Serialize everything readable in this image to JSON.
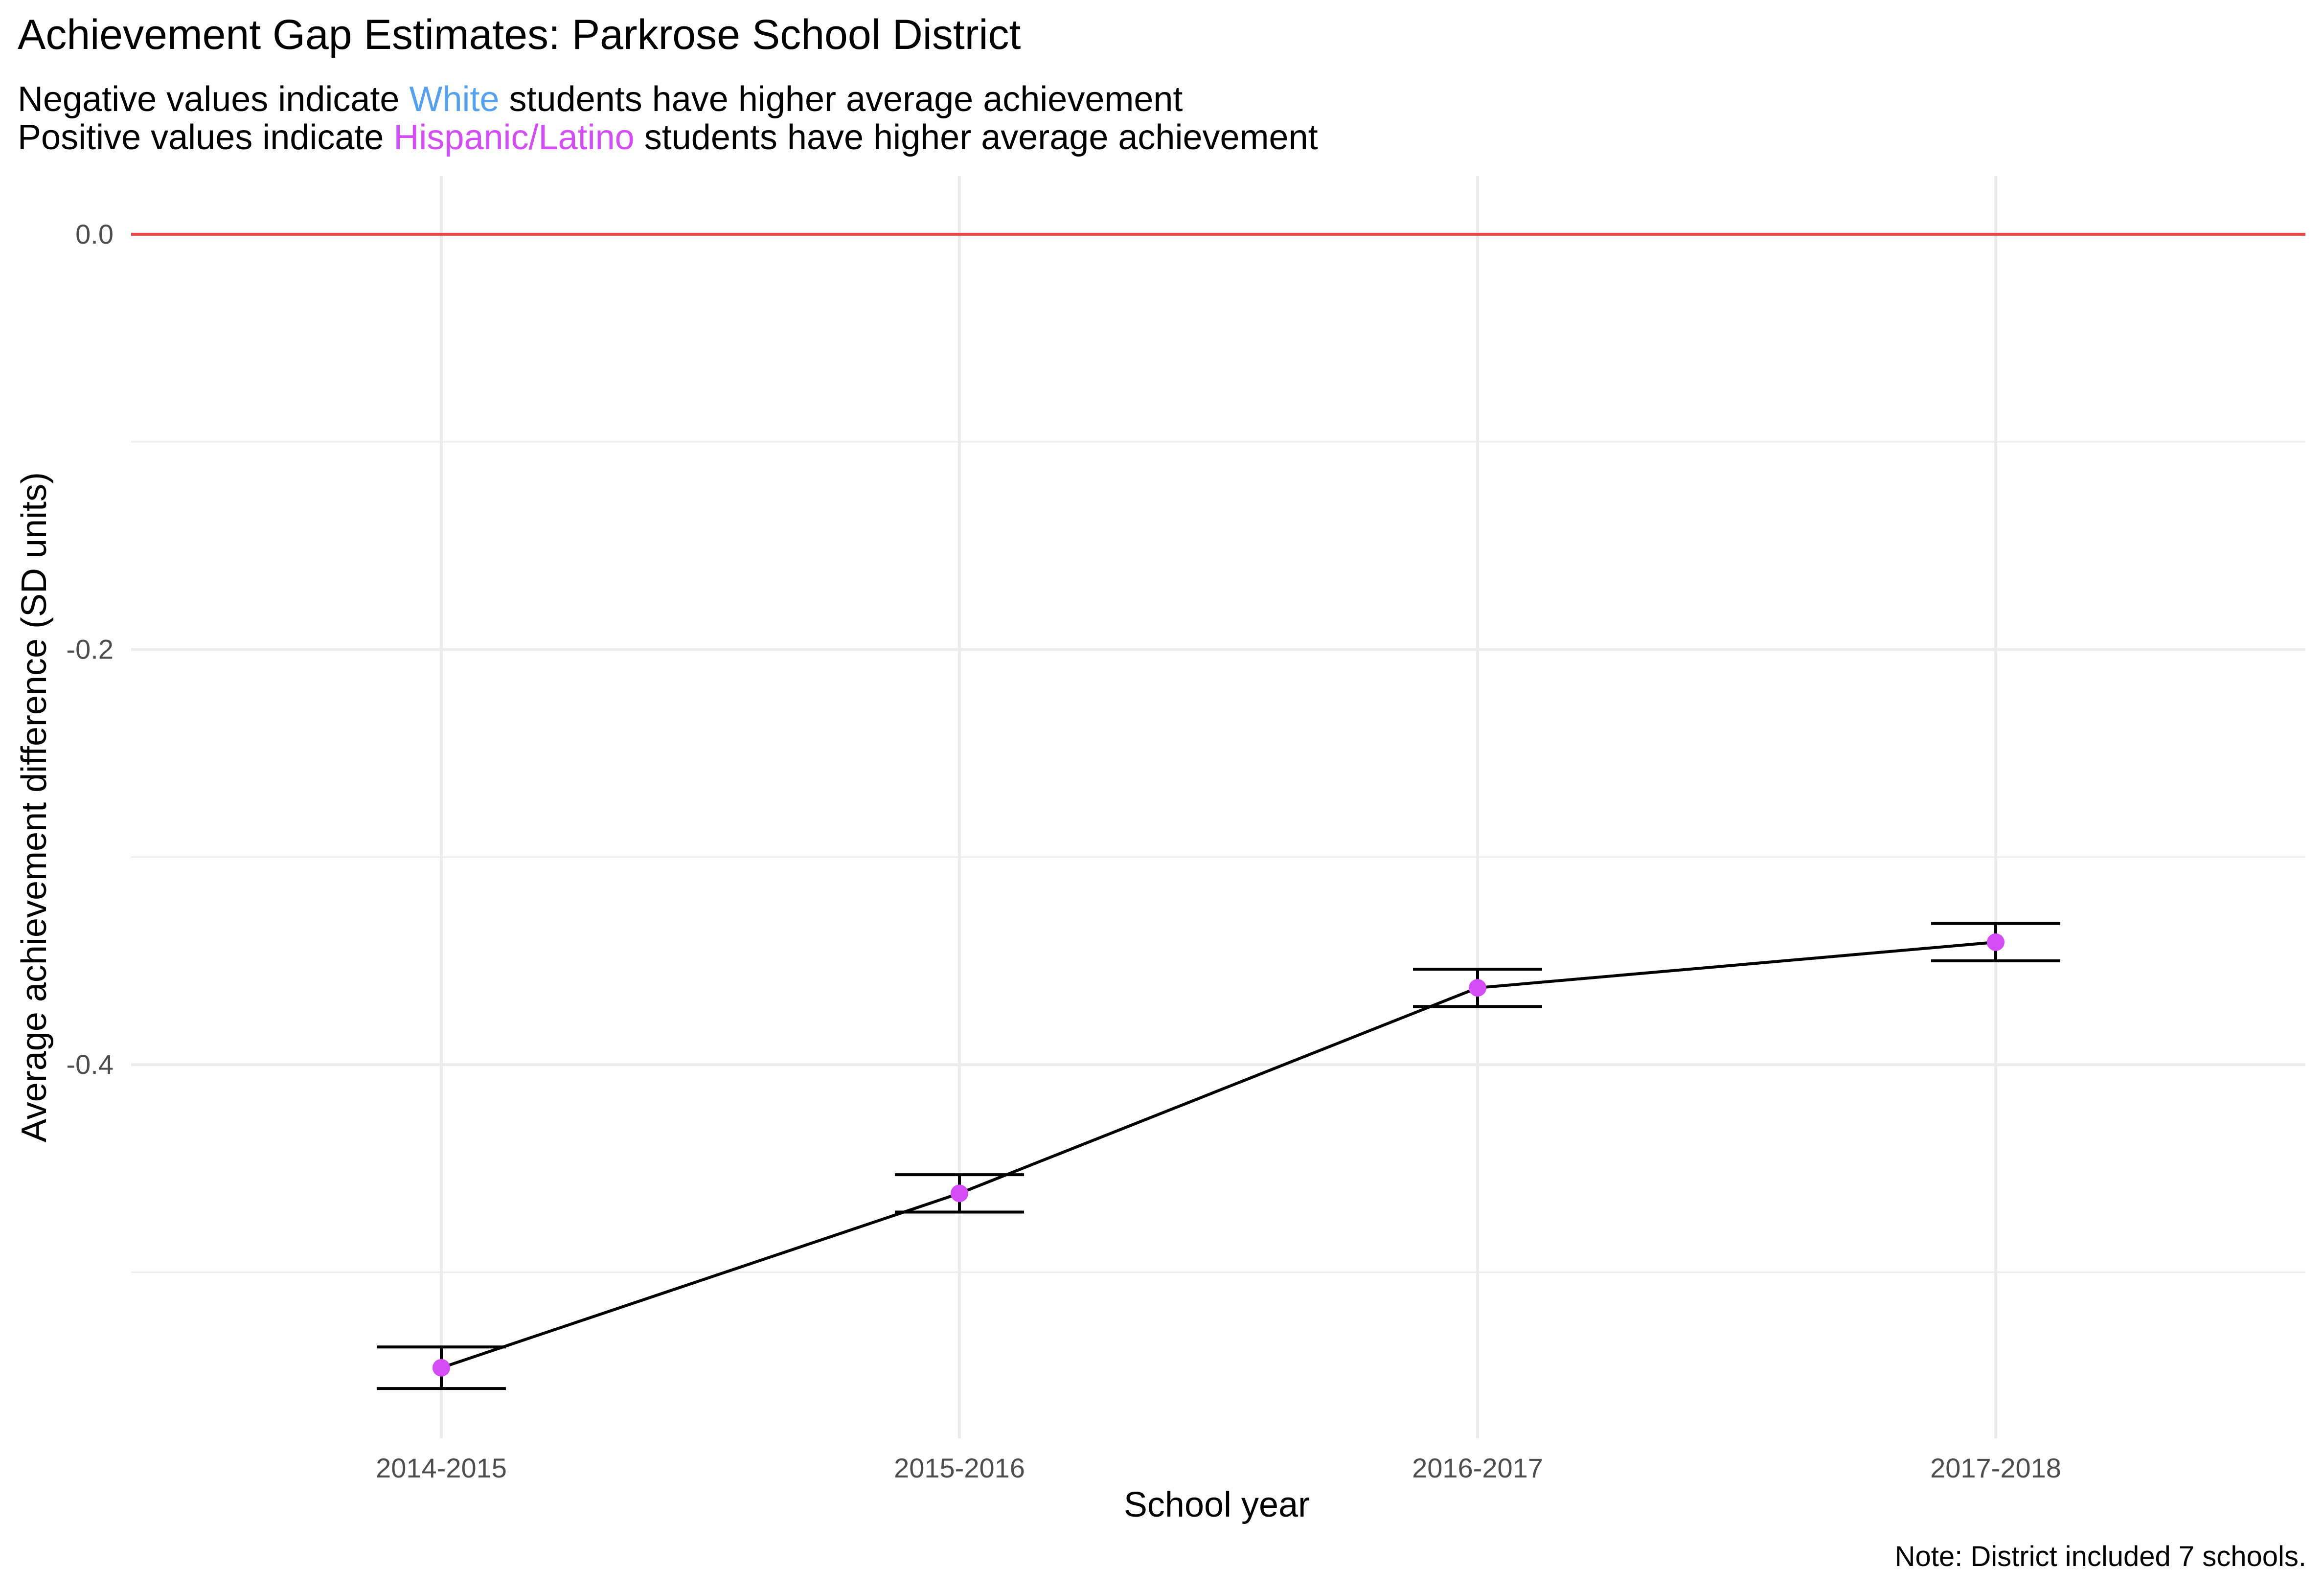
{
  "chart_data": {
    "type": "line",
    "title": "Achievement Gap Estimates: Parkrose School District",
    "subtitle": {
      "line1": {
        "before": "Negative values indicate ",
        "group": "White",
        "after": " students have higher average achievement"
      },
      "line2": {
        "before": "Positive values indicate ",
        "group": "Hispanic/Latino",
        "after": " students have higher average achievement"
      }
    },
    "xlabel": "School year",
    "ylabel": "Average achievement difference (SD units)",
    "caption": "Note: District included 7 schools.",
    "categories": [
      "2014-2015",
      "2015-2016",
      "2016-2017",
      "2017-2018"
    ],
    "series": [
      {
        "values": [
          -0.546,
          -0.462,
          -0.363,
          -0.341
        ],
        "error_low": [
          -0.556,
          -0.471,
          -0.372,
          -0.35
        ],
        "error_high": [
          -0.536,
          -0.453,
          -0.354,
          -0.332
        ]
      }
    ],
    "ylim": [
      -0.58,
      0.028
    ],
    "yticks": [
      0.0,
      -0.2,
      -0.4
    ],
    "ytick_labels": [
      "0.0",
      "-0.2",
      "-0.4"
    ],
    "minor_yticks": [
      -0.1,
      -0.3,
      -0.5
    ],
    "reference_line": 0.0,
    "grid": true,
    "colors": {
      "point": "#d44cf5",
      "line": "#000000",
      "reference": "#e8474c",
      "grid": "#ebebeb",
      "white_group": "#56a0f0",
      "latino_group": "#d44cf5"
    }
  }
}
